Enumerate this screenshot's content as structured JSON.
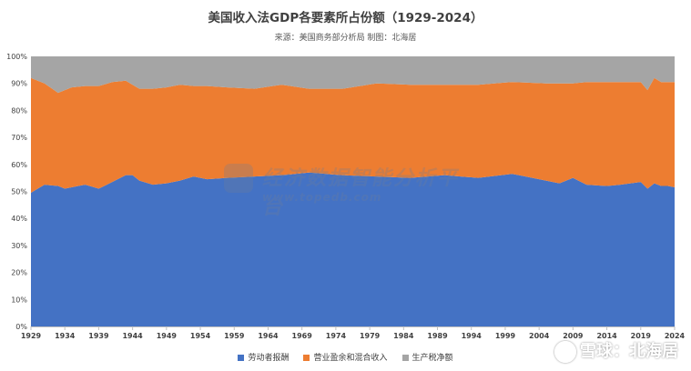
{
  "title": "美国收入法GDP各要素所占份额（1929-2024）",
  "subtitle": "来源：美国商务部分析局 制图：北海居",
  "watermark": {
    "text": "经济数据智能分析平台",
    "url": "www.topedb.com"
  },
  "source_mark": "雪球：北海居",
  "colors": {
    "labor": "#4472c4",
    "surplus": "#ed7d31",
    "tax": "#a5a5a5"
  },
  "chart_data": {
    "type": "area",
    "stacked": "percent",
    "title": "美国收入法GDP各要素所占份额（1929-2024）",
    "x_start": 1929,
    "x_end": 2024,
    "xticks": [
      "1929",
      "1934",
      "1939",
      "1944",
      "1949",
      "1954",
      "1959",
      "1964",
      "1969",
      "1974",
      "1979",
      "1984",
      "1989",
      "1994",
      "1999",
      "2004",
      "2009",
      "2014",
      "2019",
      "2024"
    ],
    "yticks": [
      "0%",
      "10%",
      "20%",
      "30%",
      "40%",
      "50%",
      "60%",
      "70%",
      "80%",
      "90%",
      "100%"
    ],
    "ylim": [
      0,
      100
    ],
    "legend_position": "bottom",
    "series": [
      {
        "name": "劳动者报酬",
        "years": [
          1929,
          1931,
          1933,
          1934,
          1935,
          1937,
          1939,
          1941,
          1943,
          1944,
          1945,
          1947,
          1949,
          1951,
          1953,
          1955,
          1958,
          1962,
          1966,
          1970,
          1975,
          1980,
          1985,
          1990,
          1995,
          2000,
          2005,
          2007,
          2009,
          2011,
          2014,
          2016,
          2019,
          2020,
          2021,
          2022,
          2023,
          2024
        ],
        "values": [
          49.5,
          52.5,
          52,
          51,
          51.5,
          52.5,
          51,
          53.5,
          56,
          56,
          54,
          52.5,
          53,
          54,
          55.5,
          54.5,
          55,
          55.5,
          56,
          57,
          56,
          55.5,
          55,
          56,
          55,
          56.5,
          54,
          53,
          55,
          52.5,
          52,
          52.5,
          53.5,
          51,
          53,
          52,
          52,
          51.5
        ]
      },
      {
        "name": "营业盈余和混合收入",
        "years": [
          1929,
          1931,
          1933,
          1934,
          1935,
          1937,
          1939,
          1941,
          1943,
          1944,
          1945,
          1947,
          1949,
          1951,
          1953,
          1955,
          1958,
          1962,
          1966,
          1970,
          1975,
          1980,
          1985,
          1990,
          1995,
          2000,
          2005,
          2007,
          2009,
          2011,
          2014,
          2016,
          2019,
          2020,
          2021,
          2022,
          2023,
          2024
        ],
        "values": [
          42.5,
          37.5,
          34.5,
          36.5,
          37,
          36.5,
          38,
          37,
          35,
          33.5,
          34,
          35.5,
          35.5,
          35.5,
          33.5,
          34.5,
          33.5,
          32.5,
          33.5,
          31,
          32,
          34.5,
          34.5,
          33.5,
          34.5,
          34,
          36,
          37,
          35,
          38,
          38.5,
          38,
          37,
          36.5,
          39,
          38.5,
          38.5,
          39
        ]
      },
      {
        "name": "生产税净额",
        "years": [
          1929,
          1931,
          1933,
          1934,
          1935,
          1937,
          1939,
          1941,
          1943,
          1944,
          1945,
          1947,
          1949,
          1951,
          1953,
          1955,
          1958,
          1962,
          1966,
          1970,
          1975,
          1980,
          1985,
          1990,
          1995,
          2000,
          2005,
          2007,
          2009,
          2011,
          2014,
          2016,
          2019,
          2020,
          2021,
          2022,
          2023,
          2024
        ],
        "values": [
          8,
          10,
          13.5,
          12.5,
          11.5,
          11,
          11,
          9.5,
          9,
          10.5,
          12,
          12,
          11.5,
          10.5,
          11,
          11,
          11.5,
          12,
          10.5,
          12,
          12,
          10,
          10.5,
          10.5,
          10.5,
          9.5,
          10,
          10,
          10,
          9.5,
          9.5,
          9.5,
          9.5,
          12.5,
          8,
          9.5,
          9.5,
          9.5
        ]
      }
    ]
  }
}
